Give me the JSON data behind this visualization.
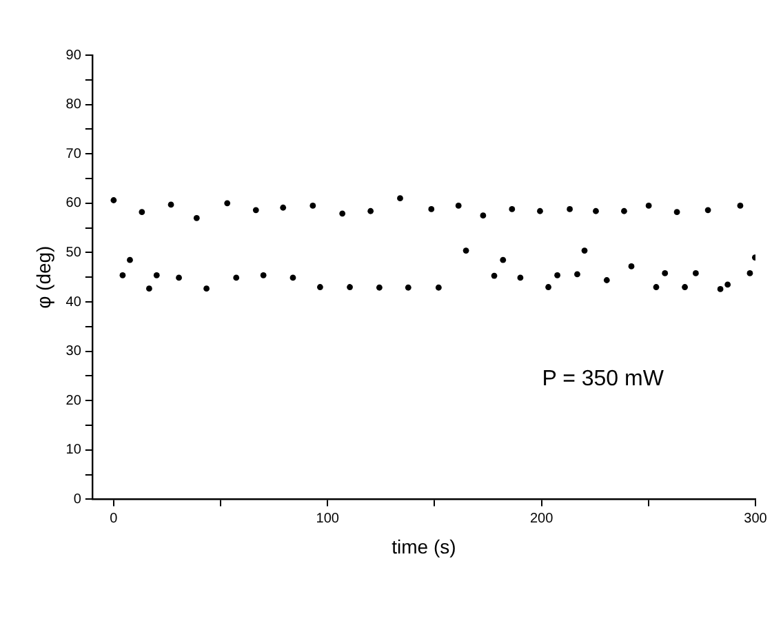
{
  "chart_data": {
    "type": "scatter",
    "xlabel": "time (s)",
    "ylabel": "φ (deg)",
    "annotations": [
      "P = 350 mW"
    ],
    "xlim": [
      -10,
      300
    ],
    "xticks": [
      0,
      {
        "value": 50,
        "label": null
      },
      100,
      {
        "value": 150,
        "label": null
      },
      200,
      {
        "value": 250,
        "label": null
      },
      300
    ],
    "ylim": [
      0,
      90
    ],
    "yticks": [
      0,
      {
        "value": 5,
        "label": null
      },
      10,
      {
        "value": 15,
        "label": null
      },
      20,
      {
        "value": 25,
        "label": null
      },
      30,
      {
        "value": 35,
        "label": null
      },
      40,
      {
        "value": 45,
        "label": null
      },
      50,
      {
        "value": 55,
        "label": null
      },
      60,
      {
        "value": 65,
        "label": null
      },
      70,
      {
        "value": 75,
        "label": null
      },
      80,
      {
        "value": 85,
        "label": null
      },
      90
    ],
    "grid": false,
    "legend": false,
    "marker": "circle",
    "series": [
      {
        "color": "#000000",
        "x": [
          0,
          4.2,
          7.6,
          13.2,
          16.6,
          20.1,
          26.8,
          30.5,
          38.8,
          43.4,
          53.1,
          57.3,
          66.5,
          70.0,
          79.2,
          83.8,
          93.1,
          96.5,
          106.9,
          110.4,
          120.1,
          124.2,
          133.9,
          137.7,
          148.5,
          151.9,
          161.2,
          164.7,
          172.7,
          177.9,
          182.0,
          186.2,
          190.1,
          199.3,
          203.2,
          207.4,
          213.2,
          216.7,
          220.1,
          225.4,
          230.5,
          238.6,
          242.0,
          250.1,
          253.6,
          257.7,
          263.3,
          267.0,
          272.1,
          277.8,
          283.6,
          287.0,
          292.9,
          297.4,
          299.8
        ],
        "values": [
          60.6,
          45.4,
          48.5,
          58.2,
          42.7,
          45.4,
          59.7,
          44.9,
          57,
          42.7,
          60,
          44.9,
          58.6,
          45.4,
          59.1,
          44.9,
          59.5,
          43,
          57.9,
          43,
          58.4,
          42.9,
          61,
          42.9,
          58.8,
          42.9,
          59.5,
          50.4,
          57.5,
          45.3,
          48.5,
          58.8,
          44.9,
          58.4,
          43,
          45.4,
          58.8,
          45.6,
          50.4,
          58.4,
          44.4,
          58.4,
          47.2,
          59.5,
          43,
          45.8,
          58.2,
          43,
          45.8,
          58.6,
          42.6,
          43.5,
          59.5,
          45.8,
          49
        ]
      }
    ]
  }
}
